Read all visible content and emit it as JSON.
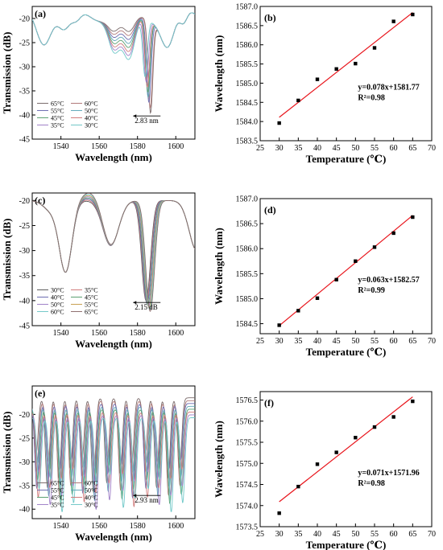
{
  "chart_data": [
    {
      "id": "a",
      "type": "line",
      "panel_label": "(a)",
      "xlabel": "Wavelength (nm)",
      "ylabel": "Transmission (dB)",
      "xlim": [
        1525,
        1610
      ],
      "ylim": [
        -45,
        -17.5
      ],
      "xticks": [
        1540,
        1560,
        1580,
        1600
      ],
      "yticks": [
        -45,
        -40,
        -35,
        -30,
        -25,
        -20
      ],
      "legend": [
        "65°C",
        "60°C",
        "55°C",
        "50°C",
        "45°C",
        "40°C",
        "35°C",
        "30°C"
      ],
      "legend_colors": [
        "#7a6a6a",
        "#b07878",
        "#6a6ab0",
        "#5fa8b8",
        "#5aa070",
        "#d07a7a",
        "#a080c8",
        "#70c8c8"
      ],
      "annotation": "2.83 nm",
      "dip_wavelengths": [
        1586.79,
        1586.61,
        1585.92,
        1585.51,
        1585.37,
        1585.1,
        1584.55,
        1583.96
      ],
      "dip_depths": [
        -41.0,
        -40.0,
        -39.0,
        -38.0,
        -37.0,
        -36.0,
        -35.0,
        -34.0
      ]
    },
    {
      "id": "b",
      "type": "scatter",
      "panel_label": "(b)",
      "xlabel": "Temperature (℃)",
      "ylabel": "Wavelength (nm)",
      "xlim": [
        25,
        70
      ],
      "ylim": [
        1583.5,
        1587.0
      ],
      "xticks": [
        25,
        30,
        35,
        40,
        45,
        50,
        55,
        60,
        65,
        70
      ],
      "yticks": [
        1583.5,
        1584.0,
        1584.5,
        1585.0,
        1585.5,
        1586.0,
        1586.5,
        1587.0
      ],
      "x": [
        30,
        35,
        40,
        45,
        50,
        55,
        60,
        65
      ],
      "y": [
        1583.96,
        1584.55,
        1585.1,
        1585.37,
        1585.51,
        1585.92,
        1586.61,
        1586.79
      ],
      "fit": {
        "slope": 0.078,
        "intercept": 1581.77
      },
      "equation": "y=0.078x+1581.77",
      "r2": "R²=0.98"
    },
    {
      "id": "c",
      "type": "line",
      "panel_label": "(c)",
      "xlabel": "Wavelength (nm)",
      "ylabel": "Transmission (dB)",
      "xlim": [
        1525,
        1610
      ],
      "ylim": [
        -45,
        -18.5
      ],
      "xticks": [
        1540,
        1560,
        1580,
        1600
      ],
      "yticks": [
        -45,
        -40,
        -35,
        -30,
        -25,
        -20
      ],
      "legend": [
        "30°C",
        "35°C",
        "40°C",
        "45°C",
        "50°C",
        "55°C",
        "60°C",
        "65°C"
      ],
      "legend_colors": [
        "#5a5a5a",
        "#d07a7a",
        "#6a6ab0",
        "#5aa070",
        "#a080c8",
        "#c8a050",
        "#70c8c8",
        "#8a6a6a"
      ],
      "annotation": "2.15 dB",
      "dip_wavelengths": [
        1584.47,
        1584.76,
        1585.01,
        1585.38,
        1585.75,
        1586.03,
        1586.31,
        1586.63
      ],
      "dip_depths": [
        -40.0,
        -40.3,
        -40.6,
        -40.9,
        -41.2,
        -41.5,
        -41.8,
        -42.15
      ]
    },
    {
      "id": "d",
      "type": "scatter",
      "panel_label": "(d)",
      "xlabel": "Temperature (℃)",
      "ylabel": "Wavelength (nm)",
      "xlim": [
        25,
        70
      ],
      "ylim": [
        1584.3,
        1587.0
      ],
      "xticks": [
        25,
        30,
        35,
        40,
        45,
        50,
        55,
        60,
        65,
        70
      ],
      "yticks": [
        1584.5,
        1585.0,
        1585.5,
        1586.0,
        1586.5,
        1587.0
      ],
      "x": [
        30,
        35,
        40,
        45,
        50,
        55,
        60,
        65
      ],
      "y": [
        1584.47,
        1584.76,
        1585.01,
        1585.38,
        1585.75,
        1586.03,
        1586.31,
        1586.63
      ],
      "fit": {
        "slope": 0.063,
        "intercept": 1582.57
      },
      "equation": "y=0.063x+1582.57",
      "r2": "R²=0.99"
    },
    {
      "id": "e",
      "type": "line",
      "panel_label": "(e)",
      "xlabel": "Wavelength (nm)",
      "ylabel": "Transmission (dB)",
      "xlim": [
        1525,
        1610
      ],
      "ylim": [
        -42,
        -14
      ],
      "xticks": [
        1540,
        1560,
        1580,
        1600
      ],
      "yticks": [
        -40,
        -35,
        -30,
        -25,
        -20
      ],
      "legend": [
        "65°C",
        "60°C",
        "55°C",
        "50°C",
        "45°C",
        "40°C",
        "35°C",
        "30°C"
      ],
      "legend_colors": [
        "#7a6a6a",
        "#b07878",
        "#6a6ab0",
        "#5fa8b8",
        "#5aa070",
        "#d07a7a",
        "#a080c8",
        "#70c8c8"
      ],
      "annotation": "2.93 nm",
      "dip_shifts": [
        0,
        0.42,
        0.84,
        1.26,
        1.68,
        2.1,
        2.52,
        2.93
      ]
    },
    {
      "id": "f",
      "type": "scatter",
      "panel_label": "(f)",
      "xlabel": "Temperature (℃)",
      "ylabel": "Wavelength (nm)",
      "xlim": [
        25,
        70
      ],
      "ylim": [
        1573.5,
        1576.7
      ],
      "xticks": [
        25,
        30,
        35,
        40,
        45,
        50,
        55,
        60,
        65,
        70
      ],
      "yticks": [
        1573.5,
        1574.0,
        1574.5,
        1575.0,
        1575.5,
        1576.0,
        1576.5
      ],
      "x": [
        30,
        35,
        40,
        45,
        50,
        55,
        60,
        65
      ],
      "y": [
        1573.82,
        1574.45,
        1574.98,
        1575.26,
        1575.61,
        1575.86,
        1576.1,
        1576.47
      ],
      "fit": {
        "slope": 0.071,
        "intercept": 1571.96
      },
      "equation": "y=0.071x+1571.96",
      "r2": "R²=0.98"
    }
  ]
}
